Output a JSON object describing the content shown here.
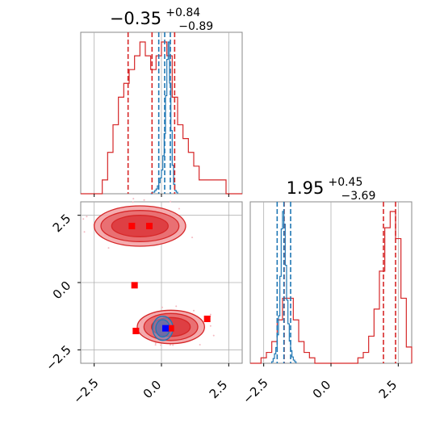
{
  "chart_data": [
    {
      "type": "histogram",
      "panel": "marginal-param-1",
      "title": {
        "median": "−0.35",
        "plus": "+0.84",
        "minus": "−0.89"
      },
      "xlim": [
        -3,
        3
      ],
      "grid": true,
      "series": [
        {
          "color": "#d62728",
          "bin_edges": [
            -3.0,
            -2.8,
            -2.6,
            -2.4,
            -2.2,
            -2.0,
            -1.8,
            -1.6,
            -1.4,
            -1.2,
            -1.0,
            -0.8,
            -0.6,
            -0.4,
            -0.2,
            0.0,
            0.2,
            0.4,
            0.6,
            0.8,
            1.0,
            1.2,
            1.4,
            1.6,
            1.8,
            2.0,
            2.2,
            2.4,
            2.6,
            2.8,
            3.0
          ],
          "counts": [
            0,
            0,
            0,
            0,
            1,
            3,
            5,
            7,
            8,
            9,
            10,
            11,
            10,
            9,
            10,
            11,
            10,
            7,
            5,
            4,
            3,
            2,
            1,
            1,
            1,
            1,
            1,
            0,
            0,
            0
          ],
          "quantiles": [
            -1.24,
            -0.35,
            0.49
          ]
        },
        {
          "color": "#1f77b4",
          "bin_edges": [
            -0.4,
            -0.35,
            -0.3,
            -0.25,
            -0.2,
            -0.15,
            -0.1,
            -0.05,
            0.0,
            0.05,
            0.1,
            0.15,
            0.2,
            0.25,
            0.3,
            0.35,
            0.4,
            0.45,
            0.5,
            0.55,
            0.6
          ],
          "counts": [
            0,
            1,
            1,
            2,
            3,
            5,
            7,
            10,
            15,
            24,
            38,
            62,
            85,
            96,
            70,
            40,
            18,
            6,
            2,
            1
          ],
          "quantiles": [
            -0.1,
            0.12,
            0.33
          ]
        }
      ]
    },
    {
      "type": "histogram",
      "panel": "marginal-param-2",
      "title": {
        "median": "1.95",
        "plus": "+0.45",
        "minus": "−3.69"
      },
      "xlim": [
        -3,
        3
      ],
      "xticks": [
        "−2.5",
        "0.0",
        "2.5"
      ],
      "grid": true,
      "series": [
        {
          "color": "#d62728",
          "bin_edges": [
            -3.0,
            -2.8,
            -2.6,
            -2.4,
            -2.2,
            -2.0,
            -1.8,
            -1.6,
            -1.4,
            -1.2,
            -1.0,
            -0.8,
            -0.6,
            -0.4,
            -0.2,
            0.0,
            0.2,
            0.4,
            0.6,
            0.8,
            1.0,
            1.2,
            1.4,
            1.6,
            1.8,
            2.0,
            2.2,
            2.4,
            2.6,
            2.8,
            3.0
          ],
          "counts": [
            0,
            0,
            1,
            2,
            4,
            8,
            12,
            12,
            8,
            4,
            2,
            1,
            0,
            0,
            0,
            0,
            0,
            0,
            0,
            0,
            1,
            2,
            5,
            10,
            17,
            25,
            28,
            23,
            12,
            3
          ],
          "quantiles": [
            -1.74,
            1.95,
            2.4
          ]
        },
        {
          "color": "#1f77b4",
          "bin_edges": [
            -2.2,
            -2.15,
            -2.1,
            -2.05,
            -2.0,
            -1.95,
            -1.9,
            -1.85,
            -1.8,
            -1.75,
            -1.7,
            -1.65,
            -1.6,
            -1.55,
            -1.5,
            -1.45,
            -1.4,
            -1.35,
            -1.3
          ],
          "counts": [
            1,
            3,
            6,
            10,
            18,
            30,
            55,
            85,
            96,
            88,
            62,
            40,
            25,
            14,
            8,
            4,
            2,
            1
          ],
          "quantiles": [
            -2.0,
            -1.75,
            -1.5
          ]
        }
      ]
    },
    {
      "type": "contour-scatter",
      "panel": "joint-param-1-vs-param-2",
      "xlim": [
        -3,
        3
      ],
      "ylim": [
        -3,
        3
      ],
      "xticks": [
        "−2.5",
        "0.0",
        "2.5"
      ],
      "yticks": [
        "2.5",
        "0.0",
        "−2.5"
      ],
      "grid": true,
      "red_modes": [
        {
          "cx": -0.8,
          "cy": 2.1,
          "levels": [
            [
              1.7,
              0.75
            ],
            [
              1.45,
              0.58
            ],
            [
              1.05,
              0.4
            ]
          ]
        },
        {
          "cx": 0.35,
          "cy": -1.65,
          "levels": [
            [
              1.25,
              0.62
            ],
            [
              1.0,
              0.5
            ],
            [
              0.72,
              0.35
            ]
          ]
        }
      ],
      "blue_mode": {
        "cx": 0.05,
        "cy": -1.7,
        "levels": [
          [
            0.38,
            0.45
          ],
          [
            0.26,
            0.32
          ]
        ]
      },
      "red_markers": [
        {
          "x": -1.1,
          "y": 2.1
        },
        {
          "x": -0.45,
          "y": 2.1
        },
        {
          "x": -1.0,
          "y": -0.1
        },
        {
          "x": -0.95,
          "y": -1.8
        },
        {
          "x": 1.7,
          "y": -1.35
        },
        {
          "x": 0.35,
          "y": -1.7
        }
      ],
      "blue_markers": [
        {
          "x": 0.15,
          "y": -1.7
        }
      ]
    }
  ]
}
